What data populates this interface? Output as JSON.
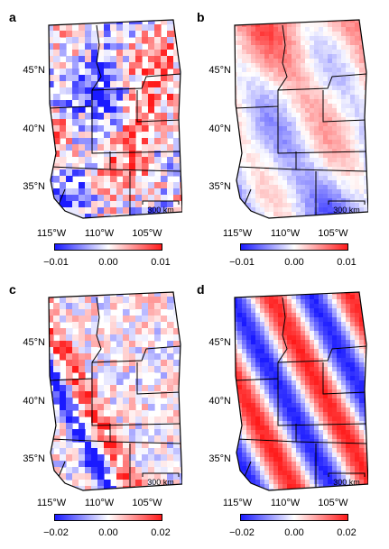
{
  "panels": [
    {
      "label": "a",
      "lat_labels": [
        "45°N",
        "40°N",
        "35°N"
      ],
      "lon_labels": [
        "115°W",
        "110°W",
        "105°W"
      ],
      "scale_bar": "300 km",
      "colorbar": {
        "min": -0.01,
        "max": 0.01,
        "ticks": [
          "−0.01",
          "0.00",
          "0.01"
        ]
      },
      "pattern": "patchy"
    },
    {
      "label": "b",
      "lat_labels": [
        "45°N",
        "40°N",
        "35°N"
      ],
      "lon_labels": [
        "115°W",
        "110°W",
        "105°W"
      ],
      "scale_bar": "300 km",
      "colorbar": {
        "min": -0.01,
        "max": 0.01,
        "ticks": [
          "−0.01",
          "0.00",
          "0.01"
        ]
      },
      "pattern": "smooth"
    },
    {
      "label": "c",
      "lat_labels": [
        "45°N",
        "40°N",
        "35°N"
      ],
      "lon_labels": [
        "115°W",
        "110°W",
        "105°W"
      ],
      "scale_bar": "300 km",
      "colorbar": {
        "min": -0.02,
        "max": 0.02,
        "ticks": [
          "−0.02",
          "0.00",
          "0.02"
        ]
      },
      "pattern": "stripe_patchy"
    },
    {
      "label": "d",
      "lat_labels": [
        "45°N",
        "40°N",
        "35°N"
      ],
      "lon_labels": [
        "115°W",
        "110°W",
        "105°W"
      ],
      "scale_bar": "300 km",
      "colorbar": {
        "min": -0.02,
        "max": 0.02,
        "ticks": [
          "−0.02",
          "0.00",
          "0.02"
        ]
      },
      "pattern": "stripe_smooth"
    }
  ],
  "colors": {
    "negative": "#1a1aff",
    "zero": "#ffffff",
    "positive": "#ff1a1a",
    "border": "#000000"
  }
}
